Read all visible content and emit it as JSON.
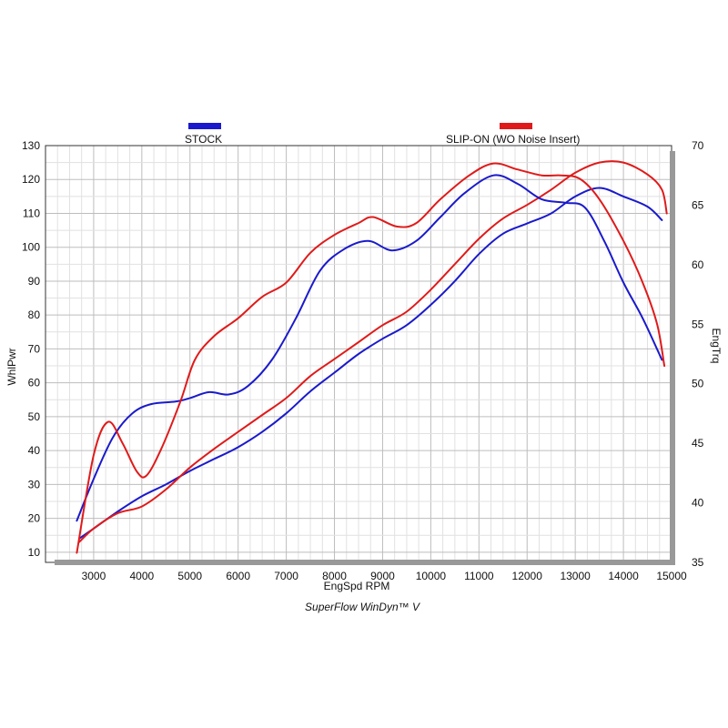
{
  "chart_data": {
    "type": "line",
    "xlabel": "EngSpd  RPM",
    "ylabel_left": "WhlPwr",
    "ylabel_right": "EngTrq",
    "footer": "SuperFlow WinDyn™ V",
    "grid": true,
    "xlim": [
      2000,
      15000
    ],
    "ylim_left": [
      7,
      130
    ],
    "ylim_right": [
      35,
      70
    ],
    "x_ticks": [
      "3000",
      "4000",
      "5000",
      "6000",
      "7000",
      "8000",
      "9000",
      "10000",
      "11000",
      "12000",
      "13000",
      "14000",
      "15000"
    ],
    "y_left_ticks": [
      "10",
      "20",
      "30",
      "40",
      "50",
      "60",
      "70",
      "80",
      "90",
      "100",
      "110",
      "120",
      "130"
    ],
    "y_right_ticks": [
      "35",
      "40",
      "45",
      "50",
      "55",
      "60",
      "65",
      "70"
    ],
    "legend": [
      {
        "label": "STOCK",
        "color": "#1a1acc"
      },
      {
        "label": "SLIP-ON (WO Noise Insert)",
        "color": "#e01a1a"
      }
    ],
    "series": [
      {
        "name": "STOCK",
        "quantity": "WhlPwr",
        "axis": "left",
        "color": "#1a1acc",
        "points": [
          [
            2700,
            14
          ],
          [
            3000,
            17
          ],
          [
            3500,
            22
          ],
          [
            4000,
            26.5
          ],
          [
            4500,
            30
          ],
          [
            5000,
            34
          ],
          [
            5500,
            37.5
          ],
          [
            6000,
            41
          ],
          [
            6500,
            45.5
          ],
          [
            7000,
            51
          ],
          [
            7500,
            57.5
          ],
          [
            8000,
            63
          ],
          [
            8500,
            68.5
          ],
          [
            9000,
            73
          ],
          [
            9500,
            77
          ],
          [
            10000,
            83
          ],
          [
            10500,
            90
          ],
          [
            11000,
            98
          ],
          [
            11500,
            104
          ],
          [
            12000,
            107
          ],
          [
            12500,
            110
          ],
          [
            13000,
            115
          ],
          [
            13500,
            117.5
          ],
          [
            14000,
            115
          ],
          [
            14500,
            112
          ],
          [
            14800,
            108
          ]
        ]
      },
      {
        "name": "SLIP-ON (WO Noise Insert)",
        "quantity": "WhlPwr",
        "axis": "left",
        "color": "#e01a1a",
        "points": [
          [
            2700,
            13
          ],
          [
            3000,
            17
          ],
          [
            3500,
            21.5
          ],
          [
            4000,
            23.5
          ],
          [
            4500,
            28.5
          ],
          [
            5000,
            35
          ],
          [
            5500,
            40.5
          ],
          [
            6000,
            45.5
          ],
          [
            6500,
            50.5
          ],
          [
            7000,
            55.5
          ],
          [
            7500,
            62
          ],
          [
            8000,
            67
          ],
          [
            8500,
            72
          ],
          [
            9000,
            77
          ],
          [
            9500,
            81
          ],
          [
            10000,
            87.5
          ],
          [
            10500,
            95
          ],
          [
            11000,
            102.5
          ],
          [
            11500,
            108.5
          ],
          [
            12000,
            112.5
          ],
          [
            12500,
            117
          ],
          [
            13000,
            122
          ],
          [
            13500,
            125
          ],
          [
            14000,
            125
          ],
          [
            14500,
            121.5
          ],
          [
            14800,
            117
          ],
          [
            14900,
            110
          ]
        ]
      },
      {
        "name": "STOCK",
        "quantity": "EngTrq",
        "axis": "right",
        "color": "#1a1acc",
        "points": [
          [
            2650,
            38.5
          ],
          [
            3000,
            42
          ],
          [
            3400,
            45.5
          ],
          [
            3800,
            47.5
          ],
          [
            4200,
            48.3
          ],
          [
            4700,
            48.5
          ],
          [
            5000,
            48.8
          ],
          [
            5400,
            49.3
          ],
          [
            5800,
            49.1
          ],
          [
            6200,
            49.8
          ],
          [
            6700,
            52
          ],
          [
            7200,
            55.5
          ],
          [
            7700,
            59.5
          ],
          [
            8200,
            61.3
          ],
          [
            8700,
            62
          ],
          [
            9200,
            61.2
          ],
          [
            9700,
            62
          ],
          [
            10200,
            64
          ],
          [
            10700,
            66
          ],
          [
            11300,
            67.5
          ],
          [
            11800,
            66.8
          ],
          [
            12300,
            65.5
          ],
          [
            12800,
            65.2
          ],
          [
            13200,
            64.8
          ],
          [
            13600,
            62
          ],
          [
            14000,
            58.5
          ],
          [
            14400,
            55.5
          ],
          [
            14800,
            52
          ]
        ]
      },
      {
        "name": "SLIP-ON (WO Noise Insert)",
        "quantity": "EngTrq",
        "axis": "right",
        "color": "#e01a1a",
        "points": [
          [
            2650,
            35.8
          ],
          [
            3000,
            44
          ],
          [
            3300,
            46.8
          ],
          [
            3600,
            45
          ],
          [
            3900,
            42.6
          ],
          [
            4100,
            42.3
          ],
          [
            4400,
            44.5
          ],
          [
            4800,
            48.5
          ],
          [
            5100,
            52
          ],
          [
            5500,
            54
          ],
          [
            6000,
            55.5
          ],
          [
            6500,
            57.3
          ],
          [
            7000,
            58.5
          ],
          [
            7500,
            61
          ],
          [
            8000,
            62.5
          ],
          [
            8500,
            63.5
          ],
          [
            8800,
            64
          ],
          [
            9300,
            63.2
          ],
          [
            9700,
            63.5
          ],
          [
            10200,
            65.5
          ],
          [
            10800,
            67.5
          ],
          [
            11300,
            68.5
          ],
          [
            11800,
            68
          ],
          [
            12300,
            67.5
          ],
          [
            12700,
            67.5
          ],
          [
            13100,
            67.2
          ],
          [
            13500,
            65.5
          ],
          [
            14000,
            62
          ],
          [
            14400,
            58.5
          ],
          [
            14700,
            55
          ],
          [
            14850,
            51.5
          ]
        ]
      }
    ]
  }
}
